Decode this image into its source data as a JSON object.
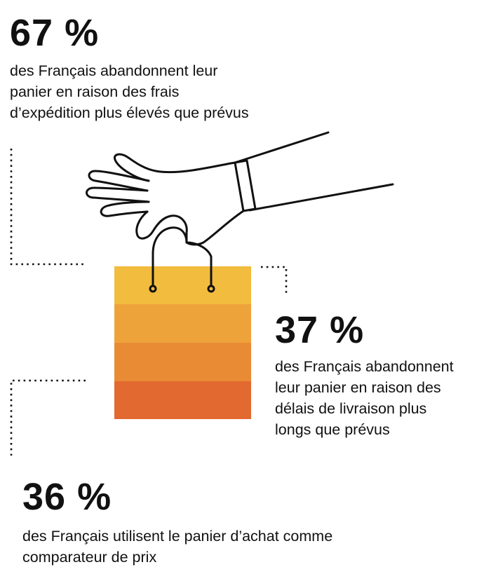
{
  "colors": {
    "bag_band_1": "#F2BC3E",
    "bag_band_2": "#EEA33A",
    "bag_band_3": "#E98B35",
    "bag_band_4": "#E2692F",
    "line": "#111111"
  },
  "stats": [
    {
      "value": "67 %",
      "text": "des Français abandonnent leur\npanier en raison des frais\nd’expédition plus élevés que prévus"
    },
    {
      "value": "37 %",
      "text": "des Français abandonnent\nleur panier en raison des\ndélais de livraison plus\nlongs que prévus"
    },
    {
      "value": "36 %",
      "text": "des Français utilisent le panier d’achat comme\ncomparateur de prix"
    }
  ]
}
